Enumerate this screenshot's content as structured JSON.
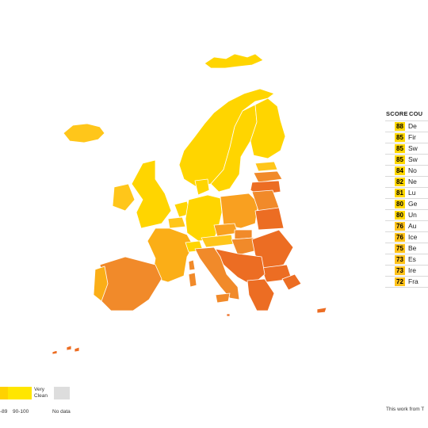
{
  "table": {
    "header_score": "SCORE",
    "header_country": "COU",
    "rows": [
      {
        "score": "88",
        "country": "De",
        "color": "#ffd700"
      },
      {
        "score": "85",
        "country": "Fir",
        "color": "#ffd700"
      },
      {
        "score": "85",
        "country": "Sw",
        "color": "#ffd700"
      },
      {
        "score": "85",
        "country": "Sw",
        "color": "#ffd700"
      },
      {
        "score": "84",
        "country": "No",
        "color": "#ffd700"
      },
      {
        "score": "82",
        "country": "Ne",
        "color": "#ffd700"
      },
      {
        "score": "81",
        "country": "Lu",
        "color": "#ffd700"
      },
      {
        "score": "80",
        "country": "Ge",
        "color": "#ffd700"
      },
      {
        "score": "80",
        "country": "Un",
        "color": "#ffd700"
      },
      {
        "score": "76",
        "country": "Au",
        "color": "#ffc21a"
      },
      {
        "score": "76",
        "country": "Ice",
        "color": "#ffc21a"
      },
      {
        "score": "75",
        "country": "Be",
        "color": "#ffc21a"
      },
      {
        "score": "73",
        "country": "Es",
        "color": "#ffc21a"
      },
      {
        "score": "73",
        "country": "Ire",
        "color": "#ffc21a"
      },
      {
        "score": "72",
        "country": "Fra",
        "color": "#ffc21a"
      }
    ]
  },
  "legend": {
    "very_clean": "Very Clean",
    "range_partial": "-89",
    "range_top": "90-100",
    "no_data": "No data",
    "colors": {
      "mid": "#ffd200",
      "top": "#ffe600",
      "no_data": "#dddddd"
    }
  },
  "credit": "This work from T",
  "map_colors": {
    "very_clean": "#ffd500",
    "clean": "#ffc61a",
    "light_orange": "#fbae17",
    "orange": "#f9a020",
    "dark_orange": "#f18a2a",
    "red_orange": "#ec6d23"
  }
}
